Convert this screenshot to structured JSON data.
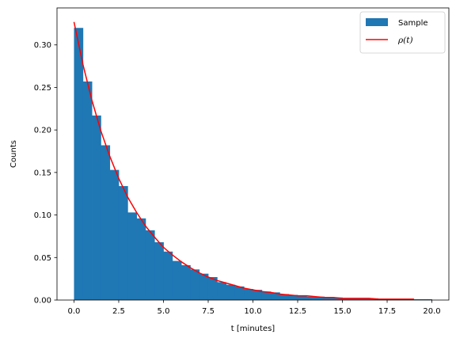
{
  "chart_data": {
    "type": "bar",
    "title": "",
    "xlabel": "t [minutes]",
    "ylabel": "Counts",
    "xlim": [
      -0.95,
      20.95
    ],
    "ylim": [
      0,
      0.3435
    ],
    "x_ticks": [
      "0.0",
      "2.5",
      "5.0",
      "7.5",
      "10.0",
      "12.5",
      "15.0",
      "17.5",
      "20.0"
    ],
    "x_tick_values": [
      0,
      2.5,
      5,
      7.5,
      10,
      12.5,
      15,
      17.5,
      20
    ],
    "y_ticks": [
      "0.00",
      "0.05",
      "0.10",
      "0.15",
      "0.20",
      "0.25",
      "0.30"
    ],
    "y_tick_values": [
      0,
      0.05,
      0.1,
      0.15,
      0.2,
      0.25,
      0.3
    ],
    "grid": false,
    "legend_position": "upper-right",
    "series": [
      {
        "name": "Sample",
        "type": "histogram",
        "color": "#1f77b4",
        "bin_width": 0.5,
        "bin_starts": [
          0,
          0.5,
          1,
          1.5,
          2,
          2.5,
          3,
          3.5,
          4,
          4.5,
          5,
          5.5,
          6,
          6.5,
          7,
          7.5,
          8,
          8.5,
          9,
          9.5,
          10,
          10.5,
          11,
          11.5,
          12,
          12.5,
          13,
          13.5,
          14,
          14.5,
          15,
          15.5,
          16,
          16.5,
          17,
          17.5,
          18,
          18.5,
          19,
          19.5
        ],
        "values": [
          0.32,
          0.257,
          0.217,
          0.182,
          0.153,
          0.134,
          0.103,
          0.096,
          0.082,
          0.068,
          0.057,
          0.046,
          0.041,
          0.036,
          0.031,
          0.027,
          0.021,
          0.018,
          0.016,
          0.013,
          0.012,
          0.01,
          0.009,
          0.007,
          0.006,
          0.005,
          0.004,
          0.004,
          0.003,
          0.003,
          0.002,
          0.002,
          0.002,
          0.002,
          0.001,
          0.001,
          0.001,
          0.001,
          0.001,
          0.001
        ]
      },
      {
        "name": "ρ(t)",
        "type": "line",
        "color": "#ff0000",
        "x": [
          0,
          0.5,
          1,
          1.5,
          2,
          2.5,
          3,
          3.5,
          4,
          4.5,
          5,
          5.5,
          6,
          6.5,
          7,
          7.5,
          8,
          8.5,
          9,
          9.5,
          10,
          10.5,
          11,
          11.5,
          12,
          12.5,
          13,
          13.5,
          14,
          14.5,
          15,
          15.5,
          16,
          16.5,
          17,
          17.5,
          18,
          18.5,
          19
        ],
        "y": [
          0.327,
          0.277,
          0.235,
          0.199,
          0.169,
          0.143,
          0.121,
          0.103,
          0.087,
          0.074,
          0.062,
          0.053,
          0.045,
          0.038,
          0.032,
          0.027,
          0.023,
          0.02,
          0.017,
          0.014,
          0.012,
          0.01,
          0.009,
          0.007,
          0.006,
          0.005,
          0.005,
          0.004,
          0.003,
          0.003,
          0.002,
          0.002,
          0.002,
          0.002,
          0.001,
          0.001,
          0.001,
          0.001,
          0.001
        ]
      }
    ]
  },
  "legend": {
    "sample_label": "Sample",
    "rho_label": "ρ(t)"
  }
}
